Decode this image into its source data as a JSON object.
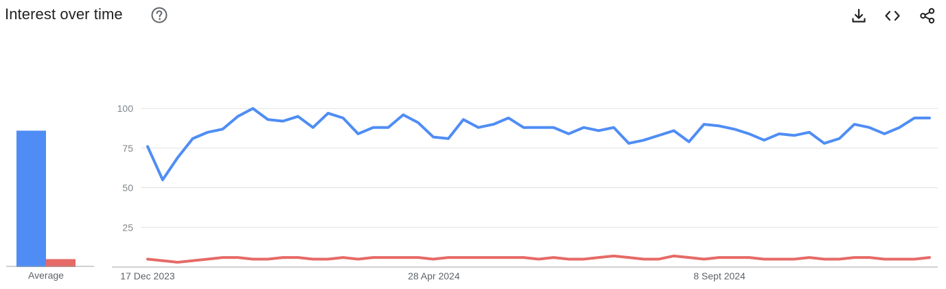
{
  "header": {
    "title": "Interest over time",
    "help_icon": "help-circle-icon",
    "actions": [
      {
        "name": "download",
        "icon": "download-icon"
      },
      {
        "name": "embed",
        "icon": "code-icon"
      },
      {
        "name": "share",
        "icon": "share-icon"
      }
    ]
  },
  "colors": {
    "series_1": "#4f8df5",
    "series_2": "#e66a66",
    "grid": "#e0e0e0",
    "axis": "#9aa0a6",
    "tick_text": "#80868b",
    "title_text": "#202124"
  },
  "average": {
    "label": "Average",
    "values": [
      86,
      5
    ]
  },
  "chart_data": {
    "type": "line",
    "ylim": [
      0,
      100
    ],
    "yticks": [
      25,
      50,
      75,
      100
    ],
    "x_tick_labels": [
      "17 Dec 2023",
      "28 Apr 2024",
      "8 Sept 2024"
    ],
    "grid": true,
    "series": [
      {
        "values": [
          76,
          55,
          69,
          81,
          85,
          87,
          95,
          100,
          93,
          92,
          95,
          88,
          97,
          94,
          84,
          88,
          88,
          96,
          91,
          82,
          81,
          93,
          88,
          90,
          94,
          88,
          88,
          88,
          84,
          88,
          86,
          88,
          78,
          80,
          83,
          86,
          79,
          90,
          89,
          87,
          84,
          80,
          84,
          83,
          85,
          78,
          81,
          90,
          88,
          84,
          88,
          94,
          94
        ]
      },
      {
        "values": [
          5,
          4,
          3,
          4,
          5,
          6,
          6,
          5,
          5,
          6,
          6,
          5,
          5,
          6,
          5,
          6,
          6,
          6,
          6,
          5,
          6,
          6,
          6,
          6,
          6,
          6,
          5,
          6,
          5,
          5,
          6,
          7,
          6,
          5,
          5,
          7,
          6,
          5,
          6,
          6,
          6,
          5,
          5,
          5,
          6,
          5,
          5,
          6,
          6,
          5,
          5,
          5,
          6
        ]
      }
    ]
  }
}
